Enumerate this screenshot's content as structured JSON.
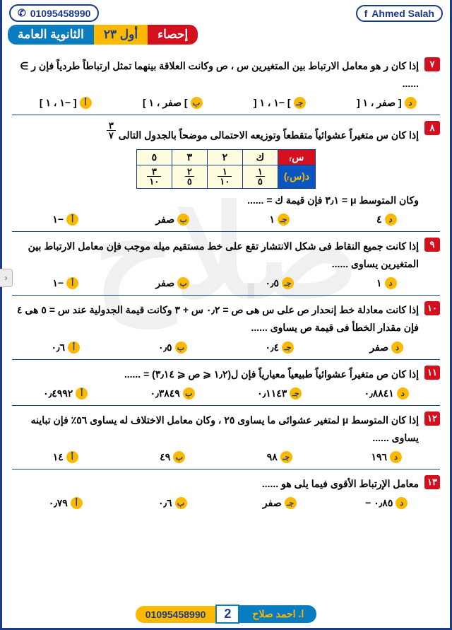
{
  "header": {
    "whatsapp": "01095458990",
    "facebook": "Ahmed Salah",
    "level": "الثانوية العامة",
    "year": "أول ٢٣",
    "subject": "إحصاء"
  },
  "watermark": "صلاح",
  "option_marks": [
    "أ",
    "ب",
    "جـ",
    "د"
  ],
  "questions": [
    {
      "num": "٧",
      "text": "إذا كان ر هو معامل الارتباط بين المتغيرين س ، ص وكانت العلاقة بينهما تمثل ارتباطاً طردياً فإن ر ∋ ......",
      "opts": [
        "[ −١ ، ١ ]",
        "] صفر ، ١ ]",
        "] −١ ، ١ [",
        "[ صفر ، ١ ["
      ]
    },
    {
      "num": "٨",
      "text_pre": "إذا كان س متغيراً عشوائياً متقطعاً وتوزيعه الاحتمالى موضحاً بالجدول التالى",
      "frac": {
        "t": "٣",
        "b": "٧"
      },
      "table": {
        "row1": {
          "label": "سᵣ",
          "cells": [
            "ك",
            "٢",
            "٣",
            "٥"
          ]
        },
        "row2": {
          "label": "د(سᵣ)",
          "cells": [
            {
              "t": "١",
              "b": "٥"
            },
            {
              "t": "١",
              "b": "١٠"
            },
            {
              "t": "٢",
              "b": "٥"
            },
            {
              "t": "٣",
              "b": "١٠"
            }
          ]
        }
      },
      "text_post": "وكان المتوسط μ = ٣٫١  فإن قيمة ك = ......",
      "opts": [
        "−١",
        "صفر",
        "١",
        "٤"
      ]
    },
    {
      "num": "٩",
      "text": "إذا كانت جميع النقاط فى شكل الانتشار تقع على خط مستقيم ميله موجب فإن معامل الارتباط بين المتغيرين يساوى ......",
      "opts": [
        "−١",
        "صفر",
        "٠٫٥",
        "١"
      ]
    },
    {
      "num": "١٠",
      "text": "إذا كانت معادلة خط إنحدار ص على س هى ص = ٠٫٢ س + ٣ وكانت قيمة الجدولية عند س = ٥ هى ٤ فإن مقدار الخطأ فى قيمة ص يساوى ......",
      "opts": [
        "٠٫٦",
        "٠٫٥",
        "٠٫٤",
        "صفر"
      ]
    },
    {
      "num": "١١",
      "text": "إذا كان ص متغيراً عشوائياً طبيعياً معيارياً  فإن ل(١٫٢ ⩽ ص ⩽ ٣٫١٤) = ......",
      "opts": [
        "٠٫٤٩٩٢",
        "٠٫٣٨٤٩",
        "٠٫١١٤٣",
        "٠٫٨٨٤١"
      ]
    },
    {
      "num": "١٢",
      "text": "إذا كان المتوسط μ لمتغير عشوائى ما يساوى ٢٥ ، وكان معامل الاختلاف له يساوى ٥٦٪ فإن تباينه يساوى ......",
      "opts": [
        "١٤",
        "٤٩",
        "٩٨",
        "١٩٦"
      ]
    },
    {
      "num": "١٣",
      "text": "معامل الإرتباط الأقوى فيما يلى هو ......",
      "opts": [
        "٠٫٧٩",
        "٠٫٦",
        "صفر",
        "٠٫٨٥ −"
      ]
    }
  ],
  "footer": {
    "name": "ا. احمد صلاح",
    "page": "2",
    "phone": "01095458990"
  }
}
